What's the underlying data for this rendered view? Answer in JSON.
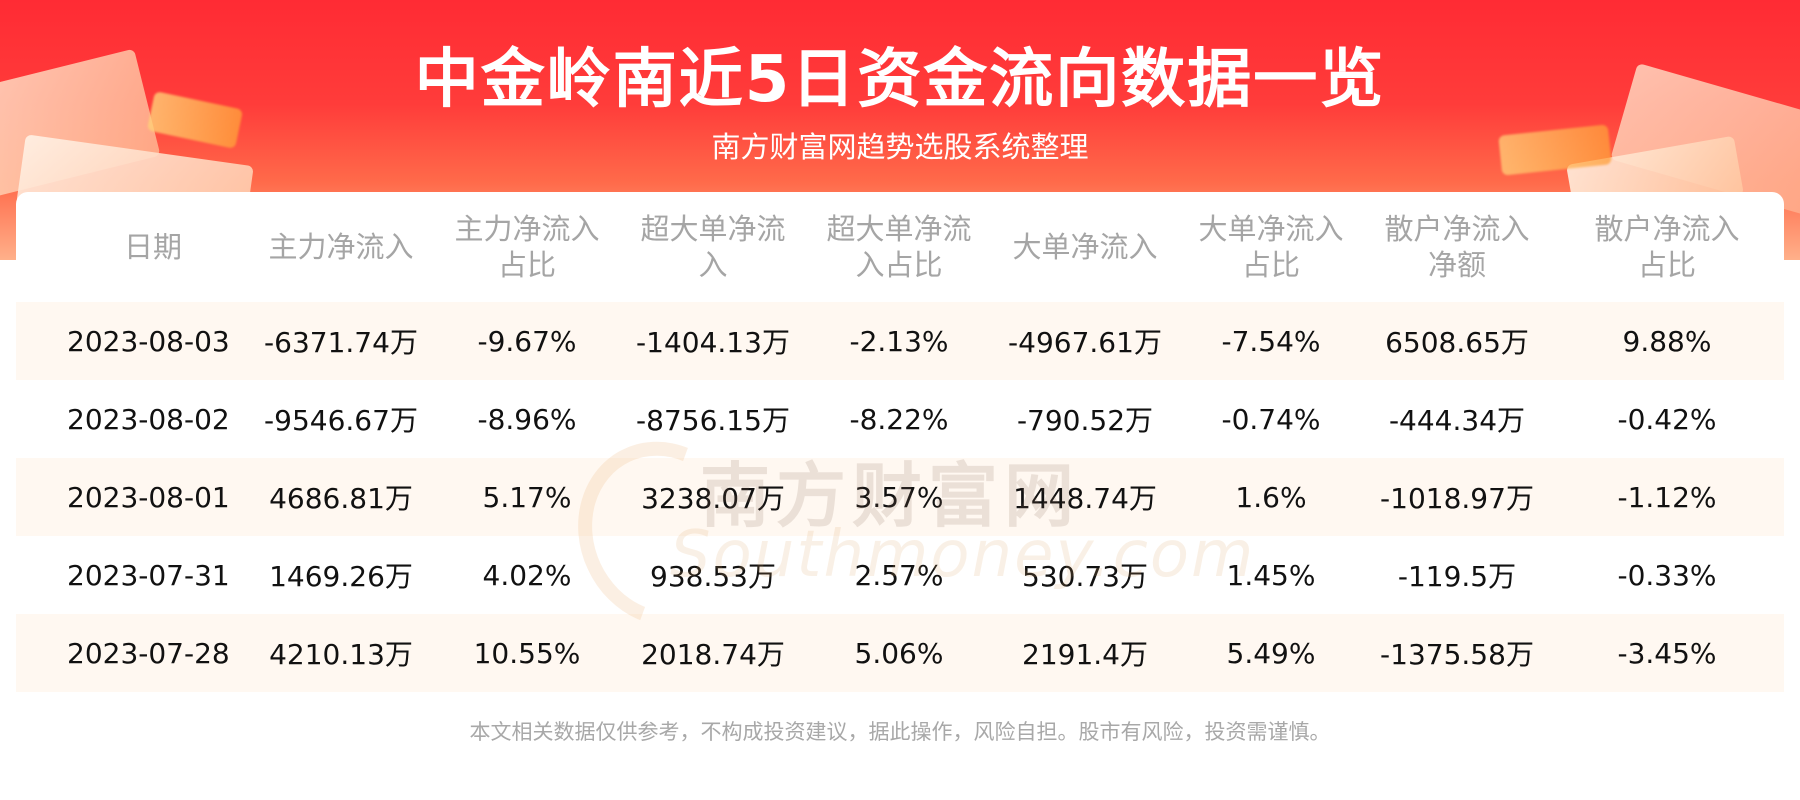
{
  "header": {
    "title": "中金岭南近5日资金流向数据一览",
    "subtitle": "南方财富网趋势选股系统整理"
  },
  "table": {
    "columns": [
      "日期",
      "主力净流入",
      "主力净流入\n占比",
      "超大单净流\n入",
      "超大单净流\n入占比",
      "大单净流入",
      "大单净流入\n占比",
      "散户净流入\n净额",
      "散户净流入\n占比"
    ],
    "rows": [
      [
        "2023-08-03",
        "-6371.74万",
        "-9.67%",
        "-1404.13万",
        "-2.13%",
        "-4967.61万",
        "-7.54%",
        "6508.65万",
        "9.88%"
      ],
      [
        "2023-08-02",
        "-9546.67万",
        "-8.96%",
        "-8756.15万",
        "-8.22%",
        "-790.52万",
        "-0.74%",
        "-444.34万",
        "-0.42%"
      ],
      [
        "2023-08-01",
        "4686.81万",
        "5.17%",
        "3238.07万",
        "3.57%",
        "1448.74万",
        "1.6%",
        "-1018.97万",
        "-1.12%"
      ],
      [
        "2023-07-31",
        "1469.26万",
        "4.02%",
        "938.53万",
        "2.57%",
        "530.73万",
        "1.45%",
        "-119.5万",
        "-0.33%"
      ],
      [
        "2023-07-28",
        "4210.13万",
        "10.55%",
        "2018.74万",
        "5.06%",
        "2191.4万",
        "5.49%",
        "-1375.58万",
        "-3.45%"
      ]
    ]
  },
  "watermark": {
    "brand": "南方财富网",
    "domain": "Southmoney.com"
  },
  "footer": {
    "disclaimer": "本文相关数据仅供参考，不构成投资建议，据此操作，风险自担。股市有风险，投资需谨慎。"
  },
  "colors": {
    "banner_red": "#ff2b34",
    "row_stripe": "#fff8f1",
    "header_text": "#a5a5a5"
  }
}
